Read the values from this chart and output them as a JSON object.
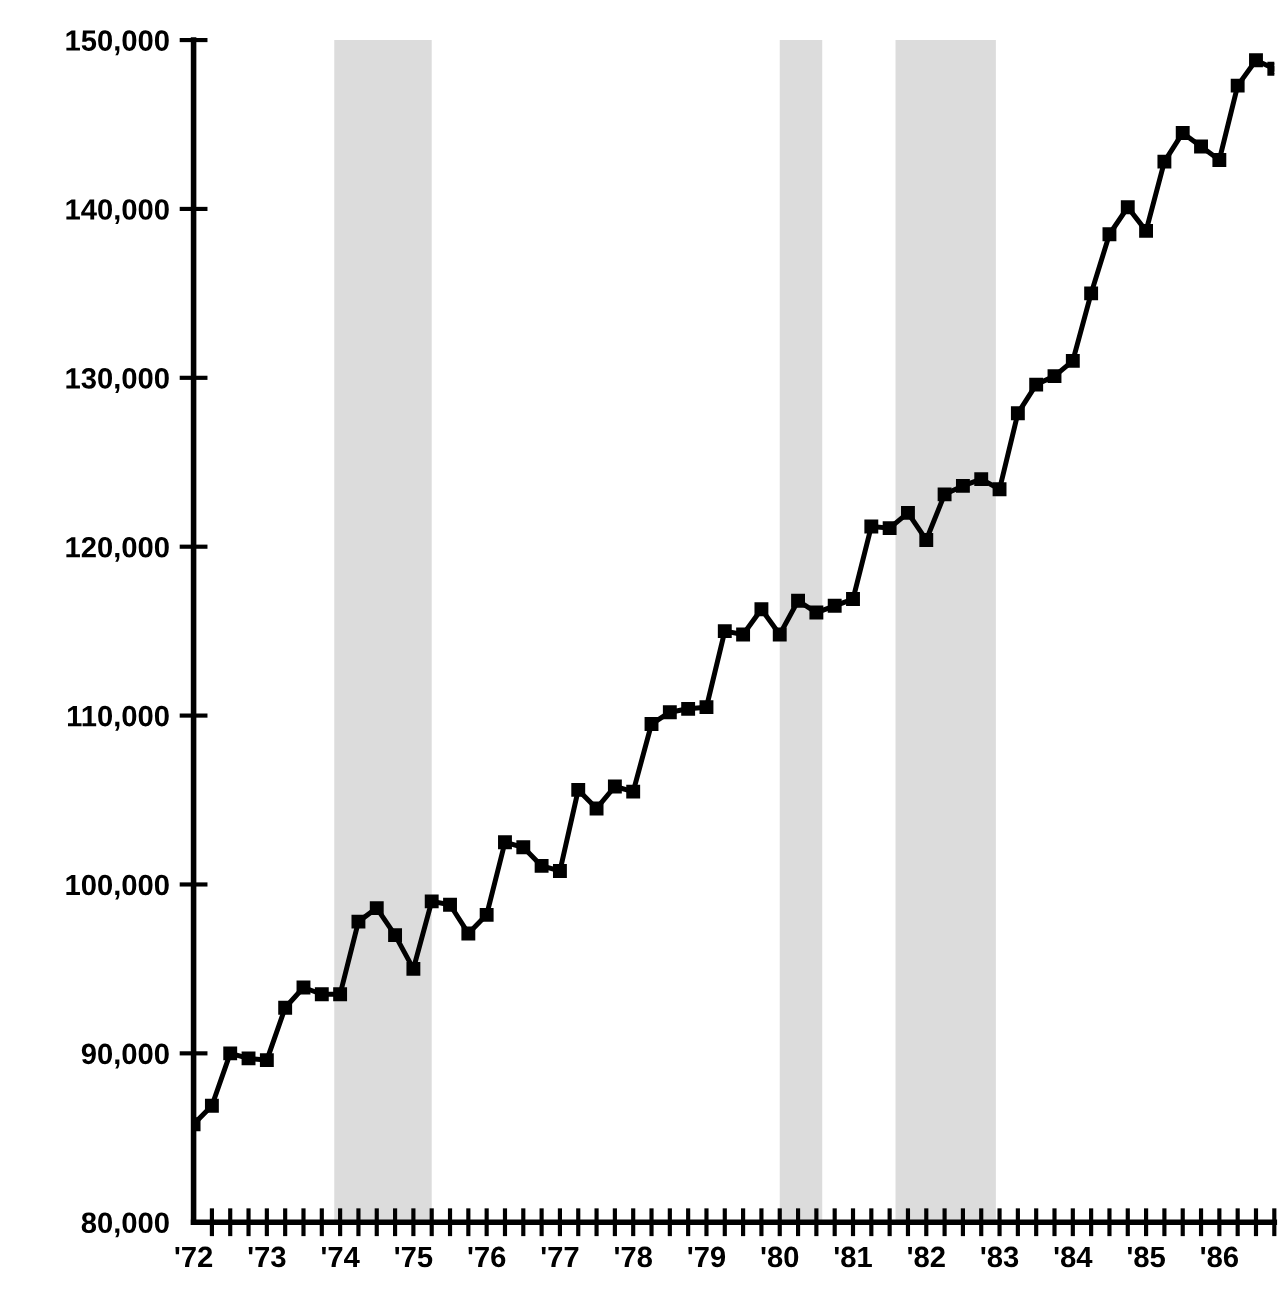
{
  "chart_data": {
    "type": "line",
    "marker": "square",
    "line_style": "solid",
    "grid": false,
    "legend": false,
    "x": [
      1972.0,
      1972.25,
      1972.5,
      1972.75,
      1973.0,
      1973.25,
      1973.5,
      1973.75,
      1974.0,
      1974.25,
      1974.5,
      1974.75,
      1975.0,
      1975.25,
      1975.5,
      1975.75,
      1976.0,
      1976.25,
      1976.5,
      1976.75,
      1977.0,
      1977.25,
      1977.5,
      1977.75,
      1978.0,
      1978.25,
      1978.5,
      1978.75,
      1979.0,
      1979.25,
      1979.5,
      1979.75,
      1980.0,
      1980.25,
      1980.5,
      1980.75,
      1981.0,
      1981.25,
      1981.5,
      1981.75,
      1982.0,
      1982.25,
      1982.5,
      1982.75,
      1983.0,
      1983.25,
      1983.5,
      1983.75,
      1984.0,
      1984.25,
      1984.5,
      1984.75,
      1985.0,
      1985.25,
      1985.5,
      1985.75,
      1986.0,
      1986.25,
      1986.5,
      1986.75
    ],
    "series": [
      {
        "color": "#000000",
        "values": [
          85800,
          86900,
          90000,
          89700,
          89600,
          92700,
          93900,
          93500,
          93500,
          97800,
          98600,
          97000,
          95000,
          99000,
          98800,
          97100,
          98200,
          102500,
          102200,
          101100,
          100800,
          105600,
          104500,
          105800,
          105500,
          109500,
          110200,
          110400,
          110500,
          115000,
          114800,
          116300,
          114800,
          116800,
          116100,
          116500,
          116900,
          121200,
          121100,
          122000,
          120400,
          123100,
          123600,
          124000,
          123400,
          127900,
          129600,
          130100,
          131000,
          135000,
          138500,
          140100,
          138700,
          142800,
          144500,
          143700,
          142900,
          147300,
          148800,
          148300
        ]
      }
    ],
    "xlim": [
      1972,
      1986.75
    ],
    "xticks": [
      {
        "value": 1972,
        "label": "'72"
      },
      {
        "value": 1972.25,
        "label": null
      },
      {
        "value": 1972.5,
        "label": null
      },
      {
        "value": 1972.75,
        "label": null
      },
      {
        "value": 1973,
        "label": "'73"
      },
      {
        "value": 1973.25,
        "label": null
      },
      {
        "value": 1973.5,
        "label": null
      },
      {
        "value": 1973.75,
        "label": null
      },
      {
        "value": 1974,
        "label": "'74"
      },
      {
        "value": 1974.25,
        "label": null
      },
      {
        "value": 1974.5,
        "label": null
      },
      {
        "value": 1974.75,
        "label": null
      },
      {
        "value": 1975,
        "label": "'75"
      },
      {
        "value": 1975.25,
        "label": null
      },
      {
        "value": 1975.5,
        "label": null
      },
      {
        "value": 1975.75,
        "label": null
      },
      {
        "value": 1976,
        "label": "'76"
      },
      {
        "value": 1976.25,
        "label": null
      },
      {
        "value": 1976.5,
        "label": null
      },
      {
        "value": 1976.75,
        "label": null
      },
      {
        "value": 1977,
        "label": "'77"
      },
      {
        "value": 1977.25,
        "label": null
      },
      {
        "value": 1977.5,
        "label": null
      },
      {
        "value": 1977.75,
        "label": null
      },
      {
        "value": 1978,
        "label": "'78"
      },
      {
        "value": 1978.25,
        "label": null
      },
      {
        "value": 1978.5,
        "label": null
      },
      {
        "value": 1978.75,
        "label": null
      },
      {
        "value": 1979,
        "label": "'79"
      },
      {
        "value": 1979.25,
        "label": null
      },
      {
        "value": 1979.5,
        "label": null
      },
      {
        "value": 1979.75,
        "label": null
      },
      {
        "value": 1980,
        "label": "'80"
      },
      {
        "value": 1980.25,
        "label": null
      },
      {
        "value": 1980.5,
        "label": null
      },
      {
        "value": 1980.75,
        "label": null
      },
      {
        "value": 1981,
        "label": "'81"
      },
      {
        "value": 1981.25,
        "label": null
      },
      {
        "value": 1981.5,
        "label": null
      },
      {
        "value": 1981.75,
        "label": null
      },
      {
        "value": 1982,
        "label": "'82"
      },
      {
        "value": 1982.25,
        "label": null
      },
      {
        "value": 1982.5,
        "label": null
      },
      {
        "value": 1982.75,
        "label": null
      },
      {
        "value": 1983,
        "label": "'83"
      },
      {
        "value": 1983.25,
        "label": null
      },
      {
        "value": 1983.5,
        "label": null
      },
      {
        "value": 1983.75,
        "label": null
      },
      {
        "value": 1984,
        "label": "'84"
      },
      {
        "value": 1984.25,
        "label": null
      },
      {
        "value": 1984.5,
        "label": null
      },
      {
        "value": 1984.75,
        "label": null
      },
      {
        "value": 1985,
        "label": "'85"
      },
      {
        "value": 1985.25,
        "label": null
      },
      {
        "value": 1985.5,
        "label": null
      },
      {
        "value": 1985.75,
        "label": null
      },
      {
        "value": 1986,
        "label": "'86"
      },
      {
        "value": 1986.25,
        "label": null
      },
      {
        "value": 1986.5,
        "label": null
      },
      {
        "value": 1986.75,
        "label": null
      }
    ],
    "ylim": [
      80000,
      150000
    ],
    "yticks": [
      {
        "value": 80000,
        "label": "80,000"
      },
      {
        "value": 90000,
        "label": "90,000"
      },
      {
        "value": 100000,
        "label": "100,000"
      },
      {
        "value": 110000,
        "label": "110,000"
      },
      {
        "value": 120000,
        "label": "120,000"
      },
      {
        "value": 130000,
        "label": "130,000"
      },
      {
        "value": 140000,
        "label": "140,000"
      },
      {
        "value": 150000,
        "label": "150,000"
      }
    ],
    "bands": [
      {
        "axis": "x",
        "from": 1973.92,
        "to": 1975.25,
        "color": "#dcdcdc"
      },
      {
        "axis": "x",
        "from": 1980.0,
        "to": 1980.58,
        "color": "#dcdcdc"
      },
      {
        "axis": "x",
        "from": 1981.58,
        "to": 1982.95,
        "color": "#dcdcdc"
      }
    ]
  }
}
